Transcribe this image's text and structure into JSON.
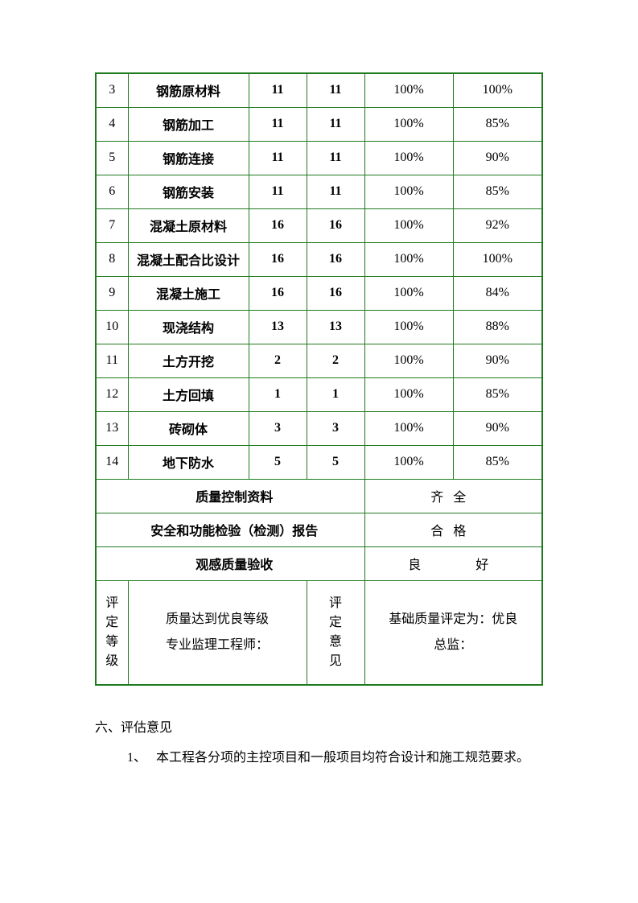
{
  "table": {
    "rows": [
      {
        "num": "3",
        "name": "钢筋原材料",
        "a": "11",
        "b": "11",
        "p1": "100%",
        "p2": "100%"
      },
      {
        "num": "4",
        "name": "钢筋加工",
        "a": "11",
        "b": "11",
        "p1": "100%",
        "p2": "85%"
      },
      {
        "num": "5",
        "name": "钢筋连接",
        "a": "11",
        "b": "11",
        "p1": "100%",
        "p2": "90%"
      },
      {
        "num": "6",
        "name": "钢筋安装",
        "a": "11",
        "b": "11",
        "p1": "100%",
        "p2": "85%"
      },
      {
        "num": "7",
        "name": "混凝土原材料",
        "a": "16",
        "b": "16",
        "p1": "100%",
        "p2": "92%"
      },
      {
        "num": "8",
        "name": "混凝土配合比设计",
        "a": "16",
        "b": "16",
        "p1": "100%",
        "p2": "100%"
      },
      {
        "num": "9",
        "name": "混凝土施工",
        "a": "16",
        "b": "16",
        "p1": "100%",
        "p2": "84%"
      },
      {
        "num": "10",
        "name": "现浇结构",
        "a": "13",
        "b": "13",
        "p1": "100%",
        "p2": "88%"
      },
      {
        "num": "11",
        "name": "土方开挖",
        "a": "2",
        "b": "2",
        "p1": "100%",
        "p2": "90%"
      },
      {
        "num": "12",
        "name": "土方回填",
        "a": "1",
        "b": "1",
        "p1": "100%",
        "p2": "85%"
      },
      {
        "num": "13",
        "name": "砖砌体",
        "a": "3",
        "b": "3",
        "p1": "100%",
        "p2": "90%"
      },
      {
        "num": "14",
        "name": "地下防水",
        "a": "5",
        "b": "5",
        "p1": "100%",
        "p2": "85%"
      }
    ],
    "summary": [
      {
        "label": "质量控制资料",
        "value": "齐全"
      },
      {
        "label": "安全和功能检验（检测）报告",
        "value": "合格"
      },
      {
        "label": "观感质量验收",
        "value": "良　　好"
      }
    ],
    "eval": {
      "left_label": "评定等级",
      "left_content": "质量达到优良等级\n专业监理工程师：",
      "mid_label": "评定意见",
      "right_content": "基础质量评定为：优良\n总监："
    }
  },
  "section_title": "六、评估意见",
  "opinions": [
    {
      "num": "1、",
      "text": "本工程各分项的主控项目和一般项目均符合设计和施工规范要求。"
    }
  ]
}
